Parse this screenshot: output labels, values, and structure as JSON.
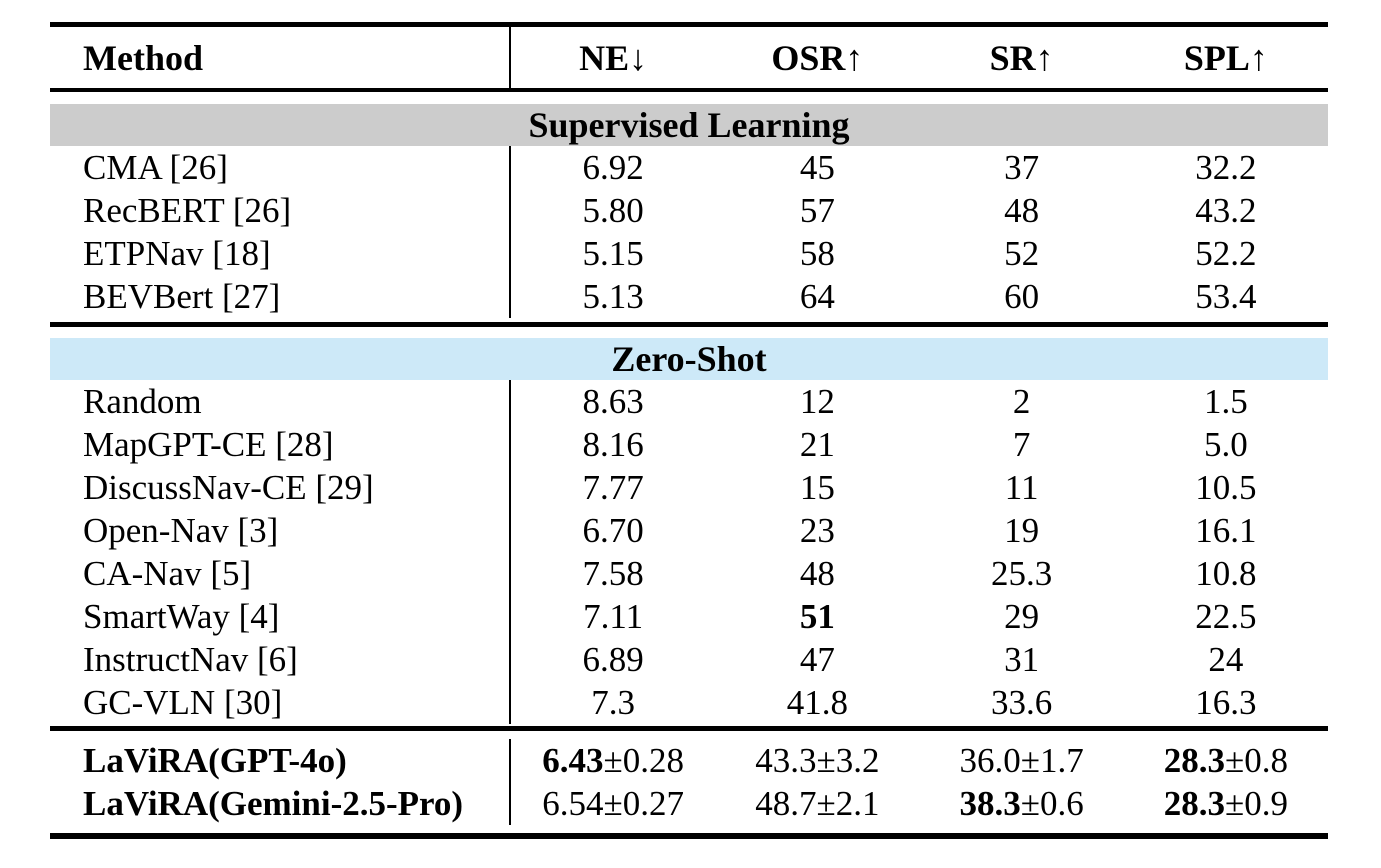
{
  "colors": {
    "background": "#ffffff",
    "text": "#000000",
    "rule": "#000000",
    "supervised_band": "#cccccc",
    "zero_shot_band": "#cde9f8"
  },
  "table": {
    "header": {
      "method": "Method",
      "cols": [
        "NE↓",
        "OSR↑",
        "SR↑",
        "SPL↑"
      ]
    },
    "sections": [
      {
        "title": "Supervised Learning",
        "rows": [
          {
            "method": "CMA [26]",
            "values": [
              "6.92",
              "45",
              "37",
              "32.2"
            ]
          },
          {
            "method": "RecBERT [26]",
            "values": [
              "5.80",
              "57",
              "48",
              "43.2"
            ]
          },
          {
            "method": "ETPNav [18]",
            "values": [
              "5.15",
              "58",
              "52",
              "52.2"
            ]
          },
          {
            "method": "BEVBert [27]",
            "values": [
              "5.13",
              "64",
              "60",
              "53.4"
            ]
          }
        ]
      },
      {
        "title": "Zero-Shot",
        "rows": [
          {
            "method": "Random",
            "values": [
              "8.63",
              "12",
              "2",
              "1.5"
            ]
          },
          {
            "method": "MapGPT-CE [28]",
            "values": [
              "8.16",
              "21",
              "7",
              "5.0"
            ]
          },
          {
            "method": "DiscussNav-CE [29]",
            "values": [
              "7.77",
              "15",
              "11",
              "10.5"
            ]
          },
          {
            "method": "Open-Nav [3]",
            "values": [
              "6.70",
              "23",
              "19",
              "16.1"
            ]
          },
          {
            "method": "CA-Nav [5]",
            "values": [
              "7.58",
              "48",
              "25.3",
              "10.8"
            ]
          },
          {
            "method": "SmartWay [4]",
            "values": [
              "7.11",
              "51",
              "29",
              "22.5"
            ],
            "bold_cols": [
              1
            ]
          },
          {
            "method": "InstructNav [6]",
            "values": [
              "6.89",
              "47",
              "31",
              "24"
            ]
          },
          {
            "method": "GC-VLN [30]",
            "values": [
              "7.3",
              "41.8",
              "33.6",
              "16.3"
            ]
          }
        ]
      }
    ],
    "final_rows": [
      {
        "method": "LaViRA(GPT-4o)",
        "method_bold": true,
        "cells": [
          {
            "value": "6.43",
            "pm": "±0.28",
            "value_bold": true
          },
          {
            "value": "43.3",
            "pm": "±3.2",
            "value_bold": false
          },
          {
            "value": "36.0",
            "pm": "±1.7",
            "value_bold": false
          },
          {
            "value": "28.3",
            "pm": "±0.8",
            "value_bold": true
          }
        ]
      },
      {
        "method": "LaViRA(Gemini-2.5-Pro)",
        "method_bold": true,
        "cells": [
          {
            "value": "6.54",
            "pm": "±0.27",
            "value_bold": false
          },
          {
            "value": "48.7",
            "pm": "±2.1",
            "value_bold": false
          },
          {
            "value": "38.3",
            "pm": "±0.6",
            "value_bold": true
          },
          {
            "value": "28.3",
            "pm": "±0.9",
            "value_bold": true
          }
        ]
      }
    ]
  }
}
